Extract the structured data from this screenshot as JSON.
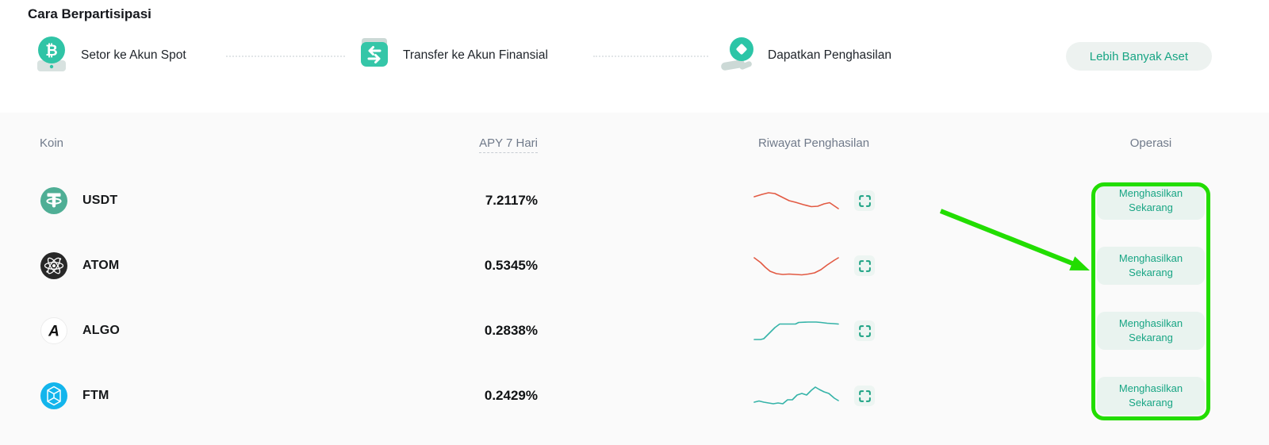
{
  "colors": {
    "accent_teal": "#18a584",
    "light_teal_bg": "#e9f3ef",
    "section_bg": "#fafafa",
    "header_text": "#707a8a",
    "spark_red": "#e25a43",
    "spark_teal": "#35b3a8",
    "annotation_green": "#22dd00"
  },
  "header": {
    "title": "Cara Berpartisipasi",
    "steps": [
      {
        "label": "Setor ke Akun Spot",
        "icon": "bitcoin-deposit-icon"
      },
      {
        "label": "Transfer ke Akun Finansial",
        "icon": "transfer-icon"
      },
      {
        "label": "Dapatkan Penghasilan",
        "icon": "earn-hand-icon"
      }
    ],
    "more_assets_button": "Lebih Banyak Aset"
  },
  "table": {
    "columns": {
      "coin": "Koin",
      "apy": "APY 7 Hari",
      "history": "Riwayat Penghasilan",
      "operation": "Operasi"
    },
    "action_button": "Menghasilkan Sekarang",
    "rows": [
      {
        "symbol": "USDT",
        "icon": "usdt",
        "icon_bg": "#4fae95",
        "apy": "7.2117%",
        "trend": "down",
        "spark_color": "#e25a43",
        "spark": [
          [
            2,
            11
          ],
          [
            12,
            8
          ],
          [
            20,
            6
          ],
          [
            28,
            7
          ],
          [
            36,
            11
          ],
          [
            46,
            16
          ],
          [
            54,
            18
          ],
          [
            64,
            21
          ],
          [
            74,
            23.5
          ],
          [
            82,
            23
          ],
          [
            90,
            20
          ],
          [
            97,
            18.5
          ],
          [
            108,
            26
          ]
        ]
      },
      {
        "symbol": "ATOM",
        "icon": "atom",
        "icon_bg": "#282828",
        "apy": "0.5345%",
        "trend": "down",
        "spark_color": "#e25a43",
        "spark": [
          [
            2,
            6
          ],
          [
            10,
            12
          ],
          [
            16,
            18
          ],
          [
            22,
            23
          ],
          [
            30,
            26
          ],
          [
            38,
            27
          ],
          [
            46,
            26.5
          ],
          [
            54,
            27
          ],
          [
            62,
            27.5
          ],
          [
            70,
            26.5
          ],
          [
            78,
            25
          ],
          [
            86,
            21
          ],
          [
            94,
            15
          ],
          [
            103,
            9
          ],
          [
            108,
            6
          ]
        ]
      },
      {
        "symbol": "ALGO",
        "icon": "algo",
        "icon_bg": "#ffffff",
        "apy": "0.2838%",
        "trend": "up",
        "spark_color": "#35b3a8",
        "spark": [
          [
            2,
            27
          ],
          [
            10,
            27
          ],
          [
            14,
            26
          ],
          [
            20,
            20
          ],
          [
            28,
            12
          ],
          [
            34,
            7.5
          ],
          [
            44,
            7.5
          ],
          [
            54,
            7.5
          ],
          [
            58,
            5.5
          ],
          [
            70,
            5
          ],
          [
            80,
            5
          ],
          [
            86,
            5.5
          ],
          [
            94,
            6.5
          ],
          [
            102,
            7
          ],
          [
            108,
            7.5
          ]
        ]
      },
      {
        "symbol": "FTM",
        "icon": "ftm",
        "icon_bg": "#13b5ec",
        "apy": "0.2429%",
        "trend": "up",
        "spark_color": "#35b3a8",
        "spark": [
          [
            2,
            24
          ],
          [
            8,
            22.5
          ],
          [
            14,
            24
          ],
          [
            20,
            25
          ],
          [
            26,
            26
          ],
          [
            32,
            25
          ],
          [
            38,
            26
          ],
          [
            44,
            21
          ],
          [
            50,
            21
          ],
          [
            56,
            15
          ],
          [
            62,
            13
          ],
          [
            68,
            15
          ],
          [
            74,
            9
          ],
          [
            79,
            5
          ],
          [
            84,
            8
          ],
          [
            90,
            11
          ],
          [
            96,
            13
          ],
          [
            103,
            19
          ],
          [
            108,
            22
          ]
        ]
      }
    ]
  },
  "annotations": {
    "highlight_box": "operation-column",
    "arrow_target": "earn-now-buttons"
  }
}
